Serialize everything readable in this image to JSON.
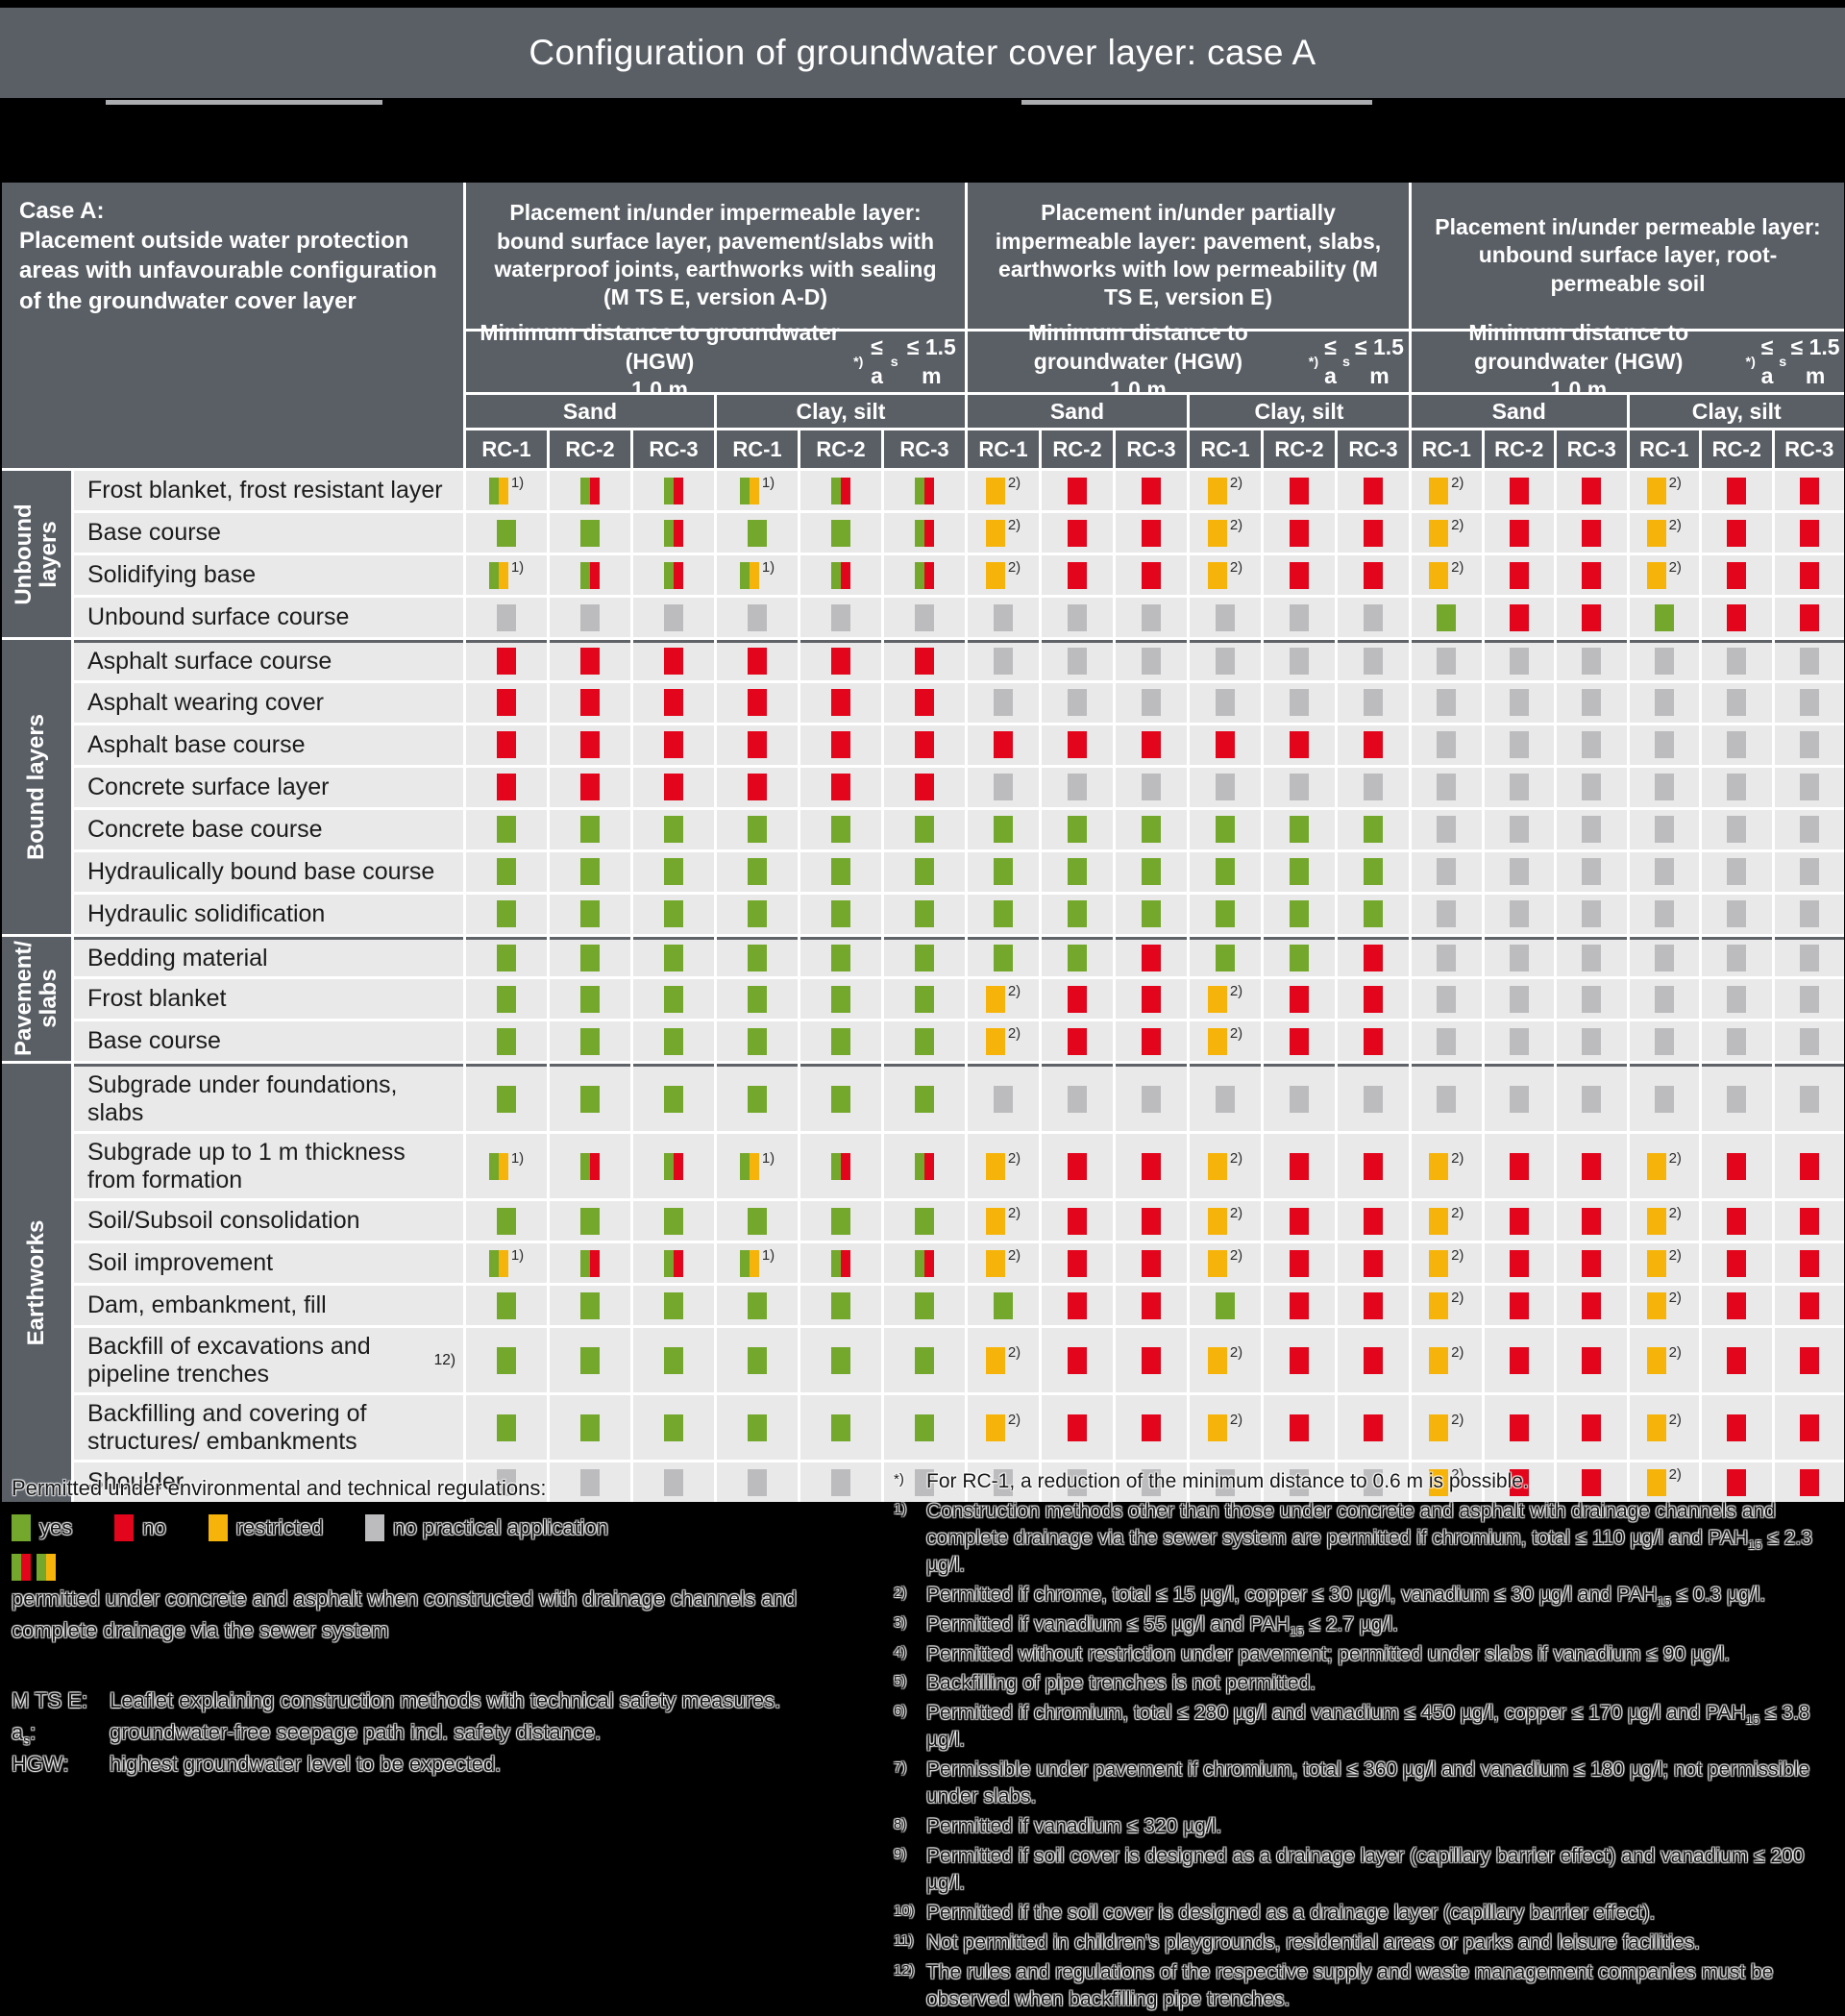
{
  "title": "Configuration of groundwater cover layer: case A",
  "colors": {
    "header": "#5a5f66",
    "yes": "#74a82c",
    "no": "#e2051b",
    "restricted": "#f6b40b",
    "na": "#bcbcbe",
    "cell_bg": "#e9e9e9"
  },
  "table": {
    "case_label": "Case A:\nPlacement outside water protection areas with unfavourable configuration of the groundwater cover layer",
    "groups": [
      {
        "title": "Placement in/under impermeable layer: bound surface layer, pavement/slabs with waterproof joints, earthworks with sealing (M TS E, version A-D)"
      },
      {
        "title": "Placement in/under partially impermeable layer: pavement, slabs, earthworks with low permeability (M TS E, version E)"
      },
      {
        "title": "Placement in/under permeable layer: unbound surface layer, root-permeable soil"
      }
    ],
    "min_distance": "Minimum distance to groundwater (HGW)\n1.0 m^{*)} ≤ a_{s} ≤ 1.5 m",
    "soil_headers": [
      "Sand",
      "Clay, silt"
    ],
    "rc_headers": [
      "RC-1",
      "RC-2",
      "RC-3"
    ],
    "row_groups": [
      {
        "label": "Unbound\nlayers",
        "rows": [
          {
            "label": "Frost blanket, frost resistant layer",
            "cells": [
              "GY1",
              "GR",
              "GR",
              "GY1",
              "GR",
              "GR",
              "Y2",
              "R",
              "R",
              "Y2",
              "R",
              "R",
              "Y2",
              "R",
              "R",
              "Y2",
              "R",
              "R"
            ]
          },
          {
            "label": "Base course",
            "cells": [
              "G",
              "G",
              "GR",
              "G",
              "G",
              "GR",
              "Y2",
              "R",
              "R",
              "Y2",
              "R",
              "R",
              "Y2",
              "R",
              "R",
              "Y2",
              "R",
              "R"
            ]
          },
          {
            "label": "Solidifying base",
            "cells": [
              "GY1",
              "GR",
              "GR",
              "GY1",
              "GR",
              "GR",
              "Y2",
              "R",
              "R",
              "Y2",
              "R",
              "R",
              "Y2",
              "R",
              "R",
              "Y2",
              "R",
              "R"
            ]
          },
          {
            "label": "Unbound surface course",
            "cells": [
              "N",
              "N",
              "N",
              "N",
              "N",
              "N",
              "N",
              "N",
              "N",
              "N",
              "N",
              "N",
              "G",
              "R",
              "R",
              "G",
              "R",
              "R"
            ]
          }
        ]
      },
      {
        "label": "Bound layers",
        "rows": [
          {
            "label": "Asphalt surface course",
            "cells": [
              "R",
              "R",
              "R",
              "R",
              "R",
              "R",
              "N",
              "N",
              "N",
              "N",
              "N",
              "N",
              "N",
              "N",
              "N",
              "N",
              "N",
              "N"
            ]
          },
          {
            "label": "Asphalt wearing cover",
            "cells": [
              "R",
              "R",
              "R",
              "R",
              "R",
              "R",
              "N",
              "N",
              "N",
              "N",
              "N",
              "N",
              "N",
              "N",
              "N",
              "N",
              "N",
              "N"
            ]
          },
          {
            "label": "Asphalt base course",
            "cells": [
              "R",
              "R",
              "R",
              "R",
              "R",
              "R",
              "R",
              "R",
              "R",
              "R",
              "R",
              "R",
              "N",
              "N",
              "N",
              "N",
              "N",
              "N"
            ]
          },
          {
            "label": "Concrete surface layer",
            "cells": [
              "R",
              "R",
              "R",
              "R",
              "R",
              "R",
              "N",
              "N",
              "N",
              "N",
              "N",
              "N",
              "N",
              "N",
              "N",
              "N",
              "N",
              "N"
            ]
          },
          {
            "label": "Concrete base course",
            "cells": [
              "G",
              "G",
              "G",
              "G",
              "G",
              "G",
              "G",
              "G",
              "G",
              "G",
              "G",
              "G",
              "N",
              "N",
              "N",
              "N",
              "N",
              "N"
            ]
          },
          {
            "label": "Hydraulically bound base course",
            "cells": [
              "G",
              "G",
              "G",
              "G",
              "G",
              "G",
              "G",
              "G",
              "G",
              "G",
              "G",
              "G",
              "N",
              "N",
              "N",
              "N",
              "N",
              "N"
            ]
          },
          {
            "label": "Hydraulic solidification",
            "cells": [
              "G",
              "G",
              "G",
              "G",
              "G",
              "G",
              "G",
              "G",
              "G",
              "G",
              "G",
              "G",
              "N",
              "N",
              "N",
              "N",
              "N",
              "N"
            ]
          }
        ]
      },
      {
        "label": "Pavement/\nslabs",
        "rows": [
          {
            "label": "Bedding material",
            "cells": [
              "G",
              "G",
              "G",
              "G",
              "G",
              "G",
              "G",
              "G",
              "R",
              "G",
              "G",
              "R",
              "N",
              "N",
              "N",
              "N",
              "N",
              "N"
            ]
          },
          {
            "label": "Frost blanket",
            "cells": [
              "G",
              "G",
              "G",
              "G",
              "G",
              "G",
              "Y2",
              "R",
              "R",
              "Y2",
              "R",
              "R",
              "N",
              "N",
              "N",
              "N",
              "N",
              "N"
            ]
          },
          {
            "label": "Base course",
            "cells": [
              "G",
              "G",
              "G",
              "G",
              "G",
              "G",
              "Y2",
              "R",
              "R",
              "Y2",
              "R",
              "R",
              "N",
              "N",
              "N",
              "N",
              "N",
              "N"
            ]
          }
        ]
      },
      {
        "label": "Earthworks",
        "rows": [
          {
            "label": "Subgrade under foundations, slabs",
            "cells": [
              "G",
              "G",
              "G",
              "G",
              "G",
              "G",
              "N",
              "N",
              "N",
              "N",
              "N",
              "N",
              "N",
              "N",
              "N",
              "N",
              "N",
              "N"
            ]
          },
          {
            "label": "Subgrade up to 1 m thickness from formation",
            "cells": [
              "GY1",
              "GR",
              "GR",
              "GY1",
              "GR",
              "GR",
              "Y2",
              "R",
              "R",
              "Y2",
              "R",
              "R",
              "Y2",
              "R",
              "R",
              "Y2",
              "R",
              "R"
            ]
          },
          {
            "label": "Soil/Subsoil consolidation",
            "cells": [
              "G",
              "G",
              "G",
              "G",
              "G",
              "G",
              "Y2",
              "R",
              "R",
              "Y2",
              "R",
              "R",
              "Y2",
              "R",
              "R",
              "Y2",
              "R",
              "R"
            ]
          },
          {
            "label": "Soil improvement",
            "cells": [
              "GY1",
              "GR",
              "GR",
              "GY1",
              "GR",
              "GR",
              "Y2",
              "R",
              "R",
              "Y2",
              "R",
              "R",
              "Y2",
              "R",
              "R",
              "Y2",
              "R",
              "R"
            ]
          },
          {
            "label": "Dam, embankment, fill",
            "cells": [
              "G",
              "G",
              "G",
              "G",
              "G",
              "G",
              "G",
              "R",
              "R",
              "G",
              "R",
              "R",
              "Y2",
              "R",
              "R",
              "Y2",
              "R",
              "R"
            ]
          },
          {
            "label": "Backfill of excavations and pipeline trenches^{12)}",
            "cells": [
              "G",
              "G",
              "G",
              "G",
              "G",
              "G",
              "Y2",
              "R",
              "R",
              "Y2",
              "R",
              "R",
              "Y2",
              "R",
              "R",
              "Y2",
              "R",
              "R"
            ]
          },
          {
            "label": "Backfilling and covering of structures/ embankments",
            "cells": [
              "G",
              "G",
              "G",
              "G",
              "G",
              "G",
              "Y2",
              "R",
              "R",
              "Y2",
              "R",
              "R",
              "Y2",
              "R",
              "R",
              "Y2",
              "R",
              "R"
            ]
          },
          {
            "label": "Shoulder",
            "cells": [
              "N",
              "N",
              "N",
              "N",
              "N",
              "N",
              "N",
              "N",
              "N",
              "N",
              "N",
              "N",
              "Y2",
              "R",
              "R",
              "Y2",
              "R",
              "R"
            ]
          }
        ]
      }
    ]
  },
  "legend": {
    "title": "Permitted under environmental and technical regulations:",
    "items": [
      {
        "status": "yes",
        "label": "yes"
      },
      {
        "status": "no",
        "label": "no"
      },
      {
        "status": "restricted",
        "label": "restricted"
      },
      {
        "status": "na",
        "label": "no practical application"
      }
    ],
    "combo_swatches": [
      [
        "yes",
        "no"
      ],
      [
        "yes",
        "restricted"
      ]
    ],
    "combo_text": "permitted under concrete and asphalt when constructed with drainage channels and complete drainage via the sewer system",
    "abbreviations": [
      {
        "label": "M TS E:",
        "text": "Leaflet explaining construction methods with technical safety measures."
      },
      {
        "label": "a_{s}:",
        "text": "groundwater-free seepage path incl. safety distance."
      },
      {
        "label": "HGW:",
        "text": "highest groundwater level to be expected."
      }
    ]
  },
  "footnotes": [
    {
      "marker": "*)",
      "text": "For RC-1, a reduction of the minimum distance to 0.6 m is possible."
    },
    {
      "marker": "1)",
      "text": "Construction methods other than those under concrete and asphalt with drainage channels and complete drainage via the sewer system are permitted if chromium, total ≤ 110 µg/l and PAH_{15} ≤ 2.3 µg/l."
    },
    {
      "marker": "2)",
      "text": "Permitted if chrome, total ≤ 15 µg/l, copper ≤ 30 µg/l, vanadium ≤ 30 µg/l and PAH_{15} ≤ 0.3 µg/l."
    },
    {
      "marker": "3)",
      "text": "Permitted if vanadium ≤ 55 µg/l and PAH_{15} ≤ 2.7 µg/l."
    },
    {
      "marker": "4)",
      "text": "Permitted without restriction under pavement; permitted under slabs if vanadium ≤ 90 µg/l."
    },
    {
      "marker": "5)",
      "text": "Backfilling of pipe trenches is not permitted."
    },
    {
      "marker": "6)",
      "text": "Permitted if chromium, total ≤ 280 µg/l and vanadium ≤ 450 µg/l, copper ≤ 170 µg/l and PAH_{15} ≤ 3.8 µg/l."
    },
    {
      "marker": "7)",
      "text": "Permissible under pavement if chromium, total ≤ 360 µg/l and vanadium ≤ 180 µg/l; not permissible under slabs."
    },
    {
      "marker": "8)",
      "text": "Permitted if vanadium ≤ 320 µg/l."
    },
    {
      "marker": "9)",
      "text": "Permitted if soil cover is designed as a drainage layer (capillary barrier effect) and vanadium ≤ 200 µg/l."
    },
    {
      "marker": "10)",
      "text": "Permitted if the soil cover is designed as a drainage layer (capillary barrier effect)."
    },
    {
      "marker": "11)",
      "text": "Not permitted in children’s playgrounds, residential areas or parks and leisure facilities."
    },
    {
      "marker": "12)",
      "text": "The rules and regulations of the respective supply and waste management companies must be observed when backfilling pipe trenches."
    }
  ]
}
